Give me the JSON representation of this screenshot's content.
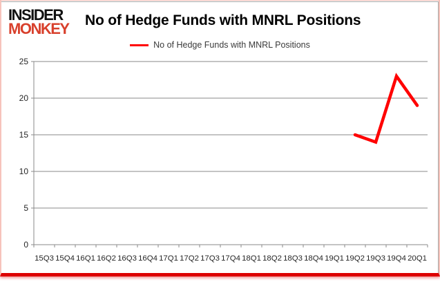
{
  "branding": {
    "line1": "INSIDER",
    "line2": "MONKEY"
  },
  "header": {
    "title": "No of Hedge Funds with MNRL Positions"
  },
  "legend": {
    "label": "No of Hedge Funds with MNRL Positions"
  },
  "colors": {
    "series_red": "#ff0000",
    "monkey_red": "#d8402c",
    "grid_gray": "#8a8a8a",
    "label_dark": "#262626",
    "border_pink": "#f6c3bb",
    "border_red": "#dd0000",
    "frame_gray": "#a6a6a6"
  },
  "chart_data": {
    "type": "line",
    "title": "No of Hedge Funds with MNRL Positions",
    "categories": [
      "15Q3",
      "15Q4",
      "16Q1",
      "16Q2",
      "16Q3",
      "16Q4",
      "17Q1",
      "17Q2",
      "17Q3",
      "17Q4",
      "18Q1",
      "18Q2",
      "18Q3",
      "18Q4",
      "19Q1",
      "19Q2",
      "19Q3",
      "19Q4",
      "20Q1"
    ],
    "series": [
      {
        "name": "No of Hedge Funds with MNRL Positions",
        "color": "#ff0000",
        "values": [
          null,
          null,
          null,
          null,
          null,
          null,
          null,
          null,
          null,
          null,
          null,
          null,
          null,
          null,
          null,
          15,
          14,
          23,
          19
        ]
      }
    ],
    "xlabel": "",
    "ylabel": "",
    "ylim": [
      0,
      25
    ],
    "yticks": [
      0,
      5,
      10,
      15,
      20,
      25
    ],
    "grid": true,
    "legend_position": "top-center"
  }
}
